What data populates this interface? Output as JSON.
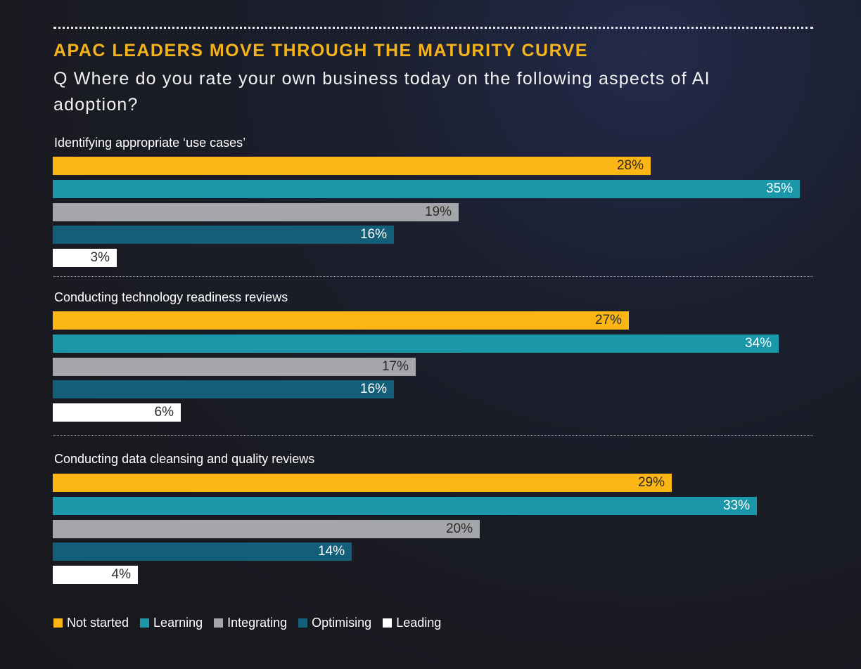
{
  "chart_data": {
    "type": "bar",
    "orientation": "horizontal",
    "title": "APAC LEADERS MOVE THROUGH THE MATURITY CURVE",
    "subtitle": "Q Where do you rate your own business today on the following aspects of AI adoption?",
    "xlim": [
      0,
      35
    ],
    "grid": false,
    "legend_position": "bottom-left",
    "categories": [
      "Not started",
      "Learning",
      "Integrating",
      "Optimising",
      "Leading"
    ],
    "colors": [
      "#fbb515",
      "#1a97a8",
      "#a5a6a9",
      "#135e79",
      "#ffffff"
    ],
    "groups": [
      {
        "name": "Identifying appropriate ‘use cases’",
        "values": [
          28,
          35,
          19,
          16,
          3
        ],
        "labels": [
          "28%",
          "35%",
          "19%",
          "16%",
          "3%"
        ]
      },
      {
        "name": "Conducting technology readiness reviews",
        "values": [
          27,
          34,
          17,
          16,
          6
        ],
        "labels": [
          "27%",
          "34%",
          "17%",
          "16%",
          "6%"
        ]
      },
      {
        "name": "Conducting data cleansing and quality reviews",
        "values": [
          29,
          33,
          20,
          14,
          4
        ],
        "labels": [
          "29%",
          "33%",
          "20%",
          "14%",
          "4%"
        ]
      }
    ]
  }
}
